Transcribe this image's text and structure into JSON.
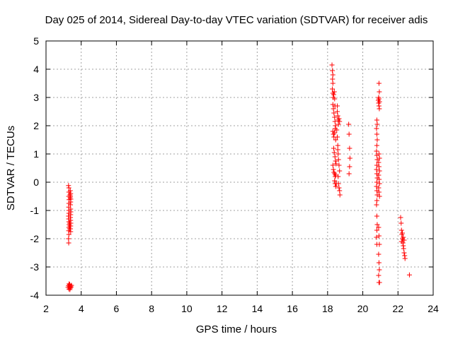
{
  "chart_data": {
    "type": "scatter",
    "title": "Day 025 of 2014, Sidereal Day-to-day VTEC variation (SDTVAR) for receiver adis",
    "xlabel": "GPS time / hours",
    "ylabel": "SDTVAR / TECUs",
    "xlim": [
      2,
      24
    ],
    "ylim": [
      -4,
      5
    ],
    "xticks": [
      2,
      4,
      6,
      8,
      10,
      12,
      14,
      16,
      18,
      20,
      22,
      24
    ],
    "yticks": [
      -4,
      -3,
      -2,
      -1,
      0,
      1,
      2,
      3,
      4,
      5
    ],
    "grid": true,
    "marker": "+",
    "marker_color": "#ff0000",
    "series": [
      {
        "name": "SDTVAR",
        "points": [
          [
            3.28,
            -0.12
          ],
          [
            3.3,
            -0.2
          ],
          [
            3.3,
            -0.35
          ],
          [
            3.29,
            -0.5
          ],
          [
            3.31,
            -0.62
          ],
          [
            3.3,
            -0.75
          ],
          [
            3.29,
            -0.88
          ],
          [
            3.3,
            -1.0
          ],
          [
            3.3,
            -1.1
          ],
          [
            3.28,
            -1.2
          ],
          [
            3.29,
            -1.3
          ],
          [
            3.3,
            -1.4
          ],
          [
            3.31,
            -1.5
          ],
          [
            3.3,
            -1.6
          ],
          [
            3.29,
            -1.72
          ],
          [
            3.3,
            -1.85
          ],
          [
            3.28,
            -2.0
          ],
          [
            3.29,
            -2.15
          ],
          [
            3.38,
            -0.3
          ],
          [
            3.4,
            -0.4
          ],
          [
            3.39,
            -0.5
          ],
          [
            3.41,
            -0.6
          ],
          [
            3.4,
            -0.7
          ],
          [
            3.39,
            -0.8
          ],
          [
            3.4,
            -0.95
          ],
          [
            3.41,
            -1.05
          ],
          [
            3.4,
            -1.15
          ],
          [
            3.39,
            -1.25
          ],
          [
            3.4,
            -1.35
          ],
          [
            3.41,
            -1.45
          ],
          [
            3.4,
            -1.55
          ],
          [
            3.39,
            -1.65
          ],
          [
            3.4,
            -1.75
          ],
          [
            3.35,
            -1.45
          ],
          [
            3.36,
            -1.55
          ],
          [
            3.34,
            -1.65
          ],
          [
            3.37,
            -0.55
          ],
          [
            3.36,
            -0.45
          ],
          [
            3.25,
            -3.72
          ],
          [
            3.28,
            -3.66
          ],
          [
            3.3,
            -3.78
          ],
          [
            3.33,
            -3.7
          ],
          [
            3.35,
            -3.62
          ],
          [
            3.38,
            -3.75
          ],
          [
            3.4,
            -3.68
          ],
          [
            3.42,
            -3.72
          ],
          [
            3.45,
            -3.65
          ],
          [
            3.36,
            -3.8
          ],
          [
            3.31,
            -3.6
          ],
          [
            18.25,
            4.15
          ],
          [
            18.27,
            3.95
          ],
          [
            18.3,
            3.8
          ],
          [
            18.28,
            3.65
          ],
          [
            18.3,
            3.5
          ],
          [
            18.27,
            3.3
          ],
          [
            18.3,
            3.15
          ],
          [
            18.32,
            3.0
          ],
          [
            18.35,
            3.1
          ],
          [
            18.38,
            3.2
          ],
          [
            18.4,
            2.95
          ],
          [
            18.42,
            2.7
          ],
          [
            18.3,
            2.75
          ],
          [
            18.33,
            2.6
          ],
          [
            18.36,
            2.45
          ],
          [
            18.4,
            2.3
          ],
          [
            18.42,
            2.15
          ],
          [
            18.45,
            2.0
          ],
          [
            18.3,
            1.8
          ],
          [
            18.33,
            1.7
          ],
          [
            18.36,
            1.6
          ],
          [
            18.4,
            1.75
          ],
          [
            18.43,
            1.9
          ],
          [
            18.46,
            1.5
          ],
          [
            18.35,
            1.2
          ],
          [
            18.38,
            1.05
          ],
          [
            18.42,
            0.9
          ],
          [
            18.45,
            0.75
          ],
          [
            18.48,
            0.65
          ],
          [
            18.3,
            0.6
          ],
          [
            18.33,
            0.45
          ],
          [
            18.36,
            0.35
          ],
          [
            18.4,
            0.3
          ],
          [
            18.43,
            0.2
          ],
          [
            18.46,
            0.25
          ],
          [
            18.4,
            0.05
          ],
          [
            18.43,
            -0.05
          ],
          [
            18.46,
            -0.15
          ],
          [
            18.5,
            -0.05
          ],
          [
            18.55,
            2.5
          ],
          [
            18.58,
            2.35
          ],
          [
            18.6,
            2.2
          ],
          [
            18.62,
            2.05
          ],
          [
            18.65,
            2.25
          ],
          [
            18.68,
            2.15
          ],
          [
            18.55,
            1.6
          ],
          [
            18.58,
            1.3
          ],
          [
            18.6,
            1.0
          ],
          [
            18.62,
            0.8
          ],
          [
            18.65,
            0.6
          ],
          [
            18.68,
            0.4
          ],
          [
            18.6,
            0.2
          ],
          [
            18.62,
            -0.05
          ],
          [
            18.65,
            -0.2
          ],
          [
            18.68,
            -0.3
          ],
          [
            18.7,
            -0.45
          ],
          [
            18.52,
            1.85
          ],
          [
            18.55,
            2.7
          ],
          [
            18.58,
            1.15
          ],
          [
            19.2,
            2.05
          ],
          [
            19.22,
            1.7
          ],
          [
            19.25,
            1.2
          ],
          [
            19.27,
            0.85
          ],
          [
            19.25,
            0.55
          ],
          [
            19.22,
            0.3
          ],
          [
            20.8,
            2.2
          ],
          [
            20.82,
            2.05
          ],
          [
            20.78,
            1.9
          ],
          [
            20.8,
            1.7
          ],
          [
            20.82,
            1.5
          ],
          [
            20.8,
            1.3
          ],
          [
            20.78,
            1.1
          ],
          [
            20.8,
            0.95
          ],
          [
            20.82,
            0.8
          ],
          [
            20.8,
            0.6
          ],
          [
            20.78,
            0.45
          ],
          [
            20.8,
            0.3
          ],
          [
            20.82,
            0.15
          ],
          [
            20.8,
            0.0
          ],
          [
            20.78,
            -0.15
          ],
          [
            20.8,
            -0.3
          ],
          [
            20.82,
            -0.45
          ],
          [
            20.8,
            -0.65
          ],
          [
            20.78,
            -0.8
          ],
          [
            20.8,
            -1.2
          ],
          [
            20.82,
            -1.5
          ],
          [
            20.8,
            -1.7
          ],
          [
            20.78,
            -1.95
          ],
          [
            20.8,
            -2.2
          ],
          [
            20.92,
            3.5
          ],
          [
            20.94,
            3.2
          ],
          [
            20.9,
            3.0
          ],
          [
            20.92,
            2.95
          ],
          [
            20.95,
            2.85
          ],
          [
            20.9,
            2.8
          ],
          [
            20.92,
            2.7
          ],
          [
            20.88,
            2.9
          ],
          [
            20.94,
            2.6
          ],
          [
            20.92,
            1.0
          ],
          [
            20.95,
            0.85
          ],
          [
            20.9,
            0.7
          ],
          [
            20.92,
            0.55
          ],
          [
            20.95,
            0.4
          ],
          [
            20.9,
            0.25
          ],
          [
            20.93,
            0.1
          ],
          [
            20.95,
            -0.05
          ],
          [
            20.9,
            -0.2
          ],
          [
            20.92,
            -0.35
          ],
          [
            20.95,
            -0.5
          ],
          [
            20.9,
            -1.6
          ],
          [
            20.92,
            -1.9
          ],
          [
            20.94,
            -2.2
          ],
          [
            20.9,
            -2.55
          ],
          [
            20.92,
            -2.85
          ],
          [
            20.94,
            -3.1
          ],
          [
            20.9,
            -3.3
          ],
          [
            20.92,
            -3.55
          ],
          [
            20.95,
            -3.55
          ],
          [
            22.15,
            -1.25
          ],
          [
            22.18,
            -1.45
          ],
          [
            22.2,
            -1.7
          ],
          [
            22.22,
            -1.85
          ],
          [
            22.25,
            -2.0
          ],
          [
            22.2,
            -2.1
          ],
          [
            22.28,
            -2.15
          ],
          [
            22.3,
            -2.25
          ],
          [
            22.32,
            -2.35
          ],
          [
            22.35,
            -2.5
          ],
          [
            22.38,
            -2.6
          ],
          [
            22.4,
            -2.7
          ],
          [
            22.25,
            -1.8
          ],
          [
            22.3,
            -1.95
          ],
          [
            22.35,
            -2.05
          ],
          [
            22.65,
            -3.28
          ]
        ]
      }
    ]
  }
}
